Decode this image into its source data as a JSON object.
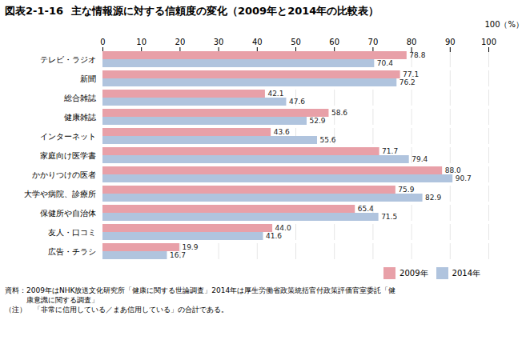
{
  "chart_data": {
    "type": "bar",
    "orientation": "horizontal",
    "figure_label": "図表2-1-16",
    "title": "主な情報源に対する信頼度の変化（2009年と2014年の比較表）",
    "annotation": "100（%）",
    "footnotes": [
      "資料：2009年はNHK放送文化研究所「健康に関する世論調査」2014年は厚生労働省政策統括官付政策評価官室委託「健",
      "　　　康意識に関する調査」",
      "（注）　「非常に信用している／まあ信用している」の合計である。"
    ],
    "categories": [
      "テレビ・ラジオ",
      "新聞",
      "総合雑誌",
      "健康雑誌",
      "インターネット",
      "家庭向け医学書",
      "かかりつけの医者",
      "大学や病院、診療所",
      "保健所や自治体",
      "友人・口コミ",
      "広告・チラシ"
    ],
    "series": [
      {
        "name": "2009年",
        "color": "#E8A0A8",
        "values": [
          78.8,
          77.1,
          42.1,
          58.6,
          43.6,
          71.7,
          88.0,
          75.9,
          65.4,
          44.0,
          19.9
        ],
        "value_labels": [
          "78.8",
          "77.1",
          "42.1",
          "58.6",
          "43.6",
          "71.7",
          "88.0",
          "75.9",
          "65.4",
          "44.0",
          "19.9"
        ]
      },
      {
        "name": "2014年",
        "color": "#B0C4DE",
        "values": [
          70.4,
          76.2,
          47.6,
          52.9,
          55.6,
          79.4,
          90.7,
          82.9,
          71.5,
          41.6,
          16.7
        ],
        "value_labels": [
          "70.4",
          "76.2",
          "47.6",
          "52.9",
          "55.6",
          "79.4",
          "90.7",
          "82.9",
          "71.5",
          "41.6",
          "16.7"
        ]
      }
    ],
    "xlim": [
      0,
      100
    ],
    "xticks": [
      0,
      10,
      20,
      30,
      40,
      50,
      60,
      70,
      80,
      90,
      100
    ],
    "grid": true,
    "legend": "lower right",
    "data_labels": true
  }
}
